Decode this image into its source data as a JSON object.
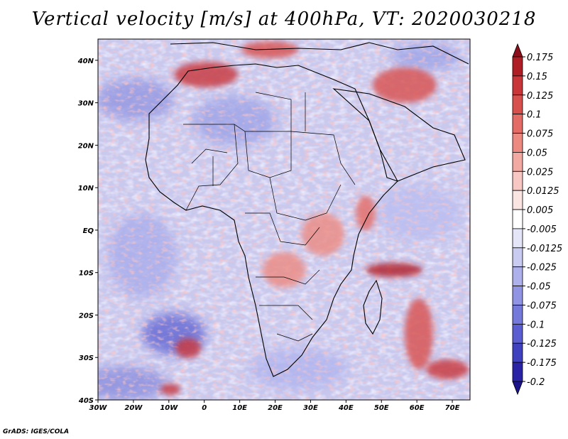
{
  "title": "Vertical velocity [m/s] at 400hPa, VT: 2020030218",
  "credit": "GrADS: IGES/COLA",
  "map": {
    "projection": "latlon",
    "lon_range": [
      -30,
      75
    ],
    "lat_range": [
      -40,
      45
    ],
    "x_ticks": [
      "30W",
      "20W",
      "10W",
      "0",
      "10E",
      "20E",
      "30E",
      "40E",
      "50E",
      "60E",
      "70E"
    ],
    "x_tick_values": [
      -30,
      -20,
      -10,
      0,
      10,
      20,
      30,
      40,
      50,
      60,
      70
    ],
    "y_ticks": [
      "40N",
      "30N",
      "20N",
      "10N",
      "EQ",
      "10S",
      "20S",
      "30S",
      "40S"
    ],
    "y_tick_values": [
      40,
      30,
      20,
      10,
      0,
      -10,
      -20,
      -30,
      -40
    ]
  },
  "colorbar": {
    "labels": [
      "0.175",
      "0.15",
      "0.125",
      "0.1",
      "0.075",
      "0.05",
      "0.025",
      "0.0125",
      "0.005",
      "-0.005",
      "-0.0125",
      "-0.025",
      "-0.05",
      "-0.075",
      "-0.1",
      "-0.125",
      "-0.175",
      "-0.2"
    ],
    "colors": [
      "#8b0f1a",
      "#b01e25",
      "#c8363a",
      "#d8504e",
      "#e46c66",
      "#ec8a82",
      "#f2a9a2",
      "#f7c8c3",
      "#fbe5e2",
      "#ffffff",
      "#e4e6f8",
      "#c9cbf1",
      "#adb0ea",
      "#9194e2",
      "#7579da",
      "#5a5ed0",
      "#3f41bf",
      "#2a23a6",
      "#1a138a"
    ]
  },
  "colors": {
    "neutral": "#e6e4f4",
    "positive": "#d23a3a",
    "negative": "#3f3fc4",
    "coast": "#000000"
  }
}
